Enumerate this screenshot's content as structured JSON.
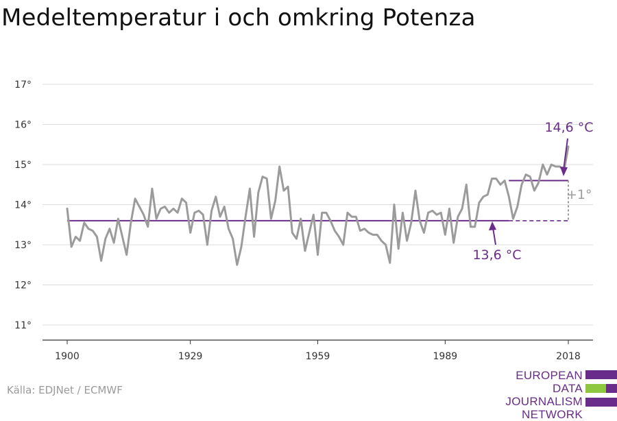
{
  "title": "Medeltemperatur i och omkring Potenza",
  "source": "Källa: EDJNet / ECMWF",
  "logo": {
    "lines": [
      "EUROPEAN",
      "DATA JOURNALISM",
      "NETWORK"
    ],
    "color_primary": "#6a2c8a",
    "color_accent": "#8dc63f"
  },
  "colors": {
    "series": "#9b9b9b",
    "reference": "#6a2c8a",
    "delta": "#9b9b9b"
  },
  "chart_data": {
    "type": "line",
    "title": "Medeltemperatur i och omkring Potenza",
    "xlabel": "",
    "ylabel": "",
    "x_ticks": [
      1900,
      1929,
      1959,
      1989,
      2018
    ],
    "y_ticks": [
      11,
      12,
      13,
      14,
      15,
      16,
      17
    ],
    "y_tick_labels": [
      "11°",
      "12°",
      "13°",
      "14°",
      "15°",
      "16°",
      "17°"
    ],
    "ylim": [
      10.6,
      17.2
    ],
    "xlim": [
      1900,
      2018
    ],
    "grid": true,
    "series": [
      {
        "x": [
          1900,
          1901,
          1902,
          1903,
          1904,
          1905,
          1906,
          1907,
          1908,
          1909,
          1910,
          1911,
          1912,
          1913,
          1914,
          1915,
          1916,
          1917,
          1918,
          1919,
          1920,
          1921,
          1922,
          1923,
          1924,
          1925,
          1926,
          1927,
          1928,
          1929,
          1930,
          1931,
          1932,
          1933,
          1934,
          1935,
          1936,
          1937,
          1938,
          1939,
          1940,
          1941,
          1942,
          1943,
          1944,
          1945,
          1946,
          1947,
          1948,
          1949,
          1950,
          1951,
          1952,
          1953,
          1954,
          1955,
          1956,
          1957,
          1958,
          1959,
          1960,
          1961,
          1962,
          1963,
          1964,
          1965,
          1966,
          1967,
          1968,
          1969,
          1970,
          1971,
          1972,
          1973,
          1974,
          1975,
          1976,
          1977,
          1978,
          1979,
          1980,
          1981,
          1982,
          1983,
          1984,
          1985,
          1986,
          1987,
          1988,
          1989,
          1990,
          1991,
          1992,
          1993,
          1994,
          1995,
          1996,
          1997,
          1998,
          1999,
          2000,
          2001,
          2002,
          2003,
          2004,
          2005,
          2006,
          2007,
          2008,
          2009,
          2010,
          2011,
          2012,
          2013,
          2014,
          2015,
          2016,
          2017,
          2018
        ],
        "values": [
          13.9,
          12.95,
          13.2,
          13.1,
          13.55,
          13.4,
          13.35,
          13.2,
          12.6,
          13.15,
          13.4,
          13.05,
          13.65,
          13.2,
          12.75,
          13.55,
          14.15,
          13.95,
          13.75,
          13.45,
          14.4,
          13.65,
          13.9,
          13.95,
          13.8,
          13.9,
          13.8,
          14.15,
          14.05,
          13.3,
          13.8,
          13.85,
          13.75,
          13.0,
          13.85,
          14.2,
          13.7,
          13.95,
          13.4,
          13.15,
          12.5,
          12.95,
          13.7,
          14.4,
          13.2,
          14.3,
          14.7,
          14.65,
          13.65,
          14.1,
          14.95,
          14.35,
          14.45,
          13.3,
          13.15,
          13.65,
          12.85,
          13.3,
          13.75,
          12.75,
          13.8,
          13.8,
          13.6,
          13.35,
          13.2,
          13.0,
          13.8,
          13.7,
          13.7,
          13.35,
          13.4,
          13.3,
          13.25,
          13.25,
          13.1,
          13.0,
          12.55,
          14.0,
          12.9,
          13.8,
          13.1,
          13.55,
          14.35,
          13.6,
          13.3,
          13.8,
          13.85,
          13.75,
          13.8,
          13.25,
          13.9,
          13.05,
          13.7,
          13.9,
          14.5,
          13.45,
          13.45,
          14.05,
          14.2,
          14.25,
          14.65,
          14.65,
          14.5,
          14.6,
          14.2,
          13.65,
          13.95,
          14.5,
          14.75,
          14.7,
          14.35,
          14.55,
          15.0,
          14.75,
          15.0,
          14.95,
          14.95,
          14.85,
          15.45
        ]
      }
    ],
    "reference_lines": [
      {
        "label": "13,6 °C",
        "value": 13.6,
        "x_start": 1900,
        "x_solid_end": 2004,
        "x_end": 2018
      },
      {
        "label": "14,6 °C",
        "value": 14.6,
        "x_start": 2004,
        "x_end": 2018
      }
    ],
    "delta_label": "+1°"
  }
}
